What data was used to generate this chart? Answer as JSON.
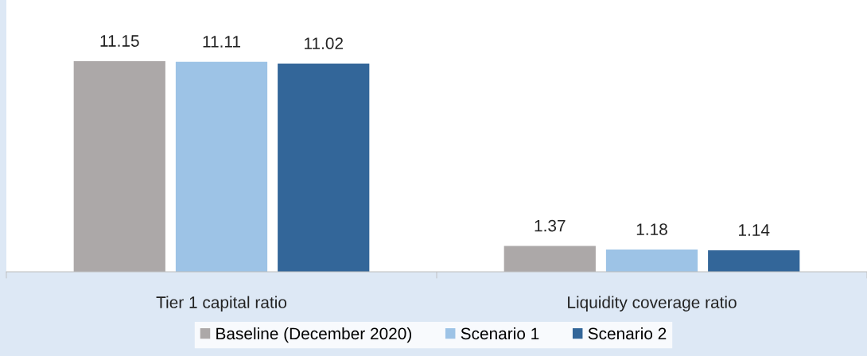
{
  "chart_data": {
    "type": "bar",
    "categories": [
      "Tier 1 capital ratio",
      "Liquidity coverage ratio"
    ],
    "series": [
      {
        "name": "Baseline (December 2020)",
        "color": "#aca8a8",
        "values": [
          11.15,
          1.37
        ]
      },
      {
        "name": "Scenario 1",
        "color": "#9dc3e6",
        "values": [
          11.11,
          1.18
        ]
      },
      {
        "name": "Scenario 2",
        "color": "#336699",
        "values": [
          11.02,
          1.14
        ]
      }
    ],
    "data_labels": true,
    "legend": "bottom",
    "grid": false
  }
}
